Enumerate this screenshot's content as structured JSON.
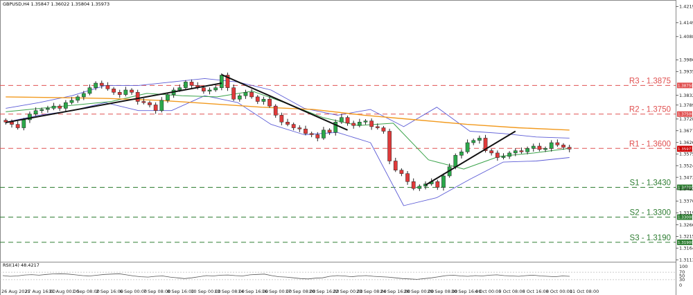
{
  "chart_data": {
    "type": "candlestick",
    "header": "GBPUSD,H4  1.35847 1.36022 1.35804 1.35973",
    "y_ticks": [
      "1.42195",
      "1.41490",
      "1.40885",
      "1.39865",
      "1.39355",
      "1.38320",
      "1.37895",
      "1.37285",
      "1.36775",
      "1.36260",
      "1.35755",
      "1.35245",
      "1.34735",
      "1.34225",
      "1.33700",
      "1.33190",
      "1.32665",
      "1.32155",
      "1.31645",
      "1.31135"
    ],
    "y_tick_values": [
      1.42195,
      1.4149,
      1.40885,
      1.39865,
      1.39355,
      1.3832,
      1.37895,
      1.37285,
      1.36775,
      1.3626,
      1.35755,
      1.35245,
      1.34735,
      1.34225,
      1.337,
      1.3319,
      1.32665,
      1.32155,
      1.31645,
      1.31135
    ],
    "ylim": [
      1.3105,
      1.4245
    ],
    "x_ticks": [
      "26 Aug 2021",
      "27 Aug 16:00",
      "31 Aug 00:00",
      "1 Sep 08:00",
      "2 Sep 16:00",
      "6 Sep 00:00",
      "7 Sep 08:00",
      "8 Sep 16:00",
      "10 Sep 00:00",
      "13 Sep 08:00",
      "14 Sep 16:00",
      "16 Sep 00:00",
      "17 Sep 08:00",
      "20 Sep 16:00",
      "22 Sep 00:00",
      "23 Sep 08:00",
      "24 Sep 16:00",
      "28 Sep 00:00",
      "29 Sep 08:00",
      "30 Sep 16:00",
      "4 Oct 00:00",
      "5 Oct 08:00",
      "6 Oct 16:00",
      "8 Oct 00:00",
      "11 Oct 08:00"
    ],
    "levels": [
      {
        "label": "R3 - 1.3875",
        "value": 1.3875,
        "tag": "1.38750",
        "color": "#e05050"
      },
      {
        "label": "R2 - 1.3750",
        "value": 1.375,
        "tag": "1.37500",
        "color": "#e05050"
      },
      {
        "label": "R1 - 1.3600",
        "value": 1.36,
        "tag": "1.36000",
        "color": "#e05050"
      },
      {
        "label": "S1 - 1.3430",
        "value": 1.343,
        "tag": "1.34300",
        "color": "#2e7d32"
      },
      {
        "label": "S2 - 1.3300",
        "value": 1.33,
        "tag": "1.33000",
        "color": "#2e7d32"
      },
      {
        "label": "S3 - 1.3190",
        "value": 1.319,
        "tag": "1.31900",
        "color": "#2e7d32"
      }
    ],
    "current_price": {
      "tag": "1.35973",
      "value": 1.35973,
      "color": "#cc0000"
    },
    "close_path": [
      1.3715,
      1.3705,
      1.369,
      1.3725,
      1.375,
      1.3765,
      1.377,
      1.3775,
      1.3785,
      1.3775,
      1.38,
      1.381,
      1.3825,
      1.384,
      1.3865,
      1.3885,
      1.3875,
      1.386,
      1.3845,
      1.3835,
      1.3855,
      1.3845,
      1.3805,
      1.38,
      1.379,
      1.3765,
      1.381,
      1.3835,
      1.3855,
      1.3865,
      1.389,
      1.3875,
      1.3865,
      1.385,
      1.3855,
      1.3865,
      1.392,
      1.3865,
      1.3815,
      1.383,
      1.3845,
      1.3825,
      1.3805,
      1.3815,
      1.3785,
      1.3745,
      1.3715,
      1.3705,
      1.369,
      1.3685,
      1.3665,
      1.366,
      1.3645,
      1.368,
      1.367,
      1.3715,
      1.3735,
      1.371,
      1.37,
      1.3715,
      1.372,
      1.3695,
      1.369,
      1.3675,
      1.3545,
      1.3505,
      1.349,
      1.3455,
      1.3425,
      1.3435,
      1.3445,
      1.3455,
      1.343,
      1.348,
      1.352,
      1.357,
      1.3585,
      1.3625,
      1.3635,
      1.3645,
      1.359,
      1.358,
      1.356,
      1.3565,
      1.358,
      1.359,
      1.3585,
      1.36,
      1.361,
      1.3595,
      1.36,
      1.3625,
      1.3615,
      1.3605,
      1.3597
    ],
    "ma_slow": {
      "color": "#f29a1e",
      "values": [
        1.3825,
        1.3822,
        1.3818,
        1.381,
        1.3795,
        1.378,
        1.377,
        1.3745,
        1.3725,
        1.3705,
        1.369,
        1.368
      ]
    },
    "ma_fast": {
      "color": "#3aa34a",
      "values": [
        1.376,
        1.3775,
        1.379,
        1.3805,
        1.384,
        1.383,
        1.3825,
        1.385,
        1.3795,
        1.3735,
        1.37,
        1.371,
        1.355,
        1.351,
        1.3565,
        1.358,
        1.36
      ]
    },
    "bb_upper": {
      "color": "#5b5bd6",
      "values": [
        1.3775,
        1.38,
        1.383,
        1.3875,
        1.3875,
        1.389,
        1.3905,
        1.389,
        1.3855,
        1.3775,
        1.3745,
        1.377,
        1.3695,
        1.378,
        1.3675,
        1.3665,
        1.365,
        1.3645
      ]
    },
    "bb_lower": {
      "color": "#5b5bd6",
      "values": [
        1.3715,
        1.3745,
        1.3765,
        1.38,
        1.3765,
        1.3765,
        1.383,
        1.38,
        1.3705,
        1.366,
        1.367,
        1.3625,
        1.335,
        1.3385,
        1.3465,
        1.354,
        1.3545,
        1.356
      ]
    },
    "trendlines": [
      {
        "from": [
          0,
          1.3713
        ],
        "to": [
          36,
          1.3885
        ]
      },
      {
        "from": [
          36,
          1.3922
        ],
        "to": [
          57,
          1.368
        ]
      },
      {
        "from": [
          70,
          1.344
        ],
        "to": [
          85,
          1.3675
        ]
      }
    ],
    "rsi": {
      "label": "RSI(14) 48.4217",
      "levels": [
        "100",
        "70",
        "50",
        "30",
        "0"
      ],
      "values": [
        52,
        48,
        50,
        55,
        57,
        54,
        58,
        61,
        62,
        60,
        56,
        52,
        50,
        54,
        58,
        60,
        62,
        56,
        50,
        46,
        44,
        48,
        50,
        44,
        40,
        36,
        40,
        46,
        52,
        50,
        54,
        55,
        52,
        50,
        56,
        58,
        60,
        52,
        46,
        44,
        40,
        36,
        34,
        38,
        40,
        48,
        52,
        50,
        46,
        50,
        52,
        48,
        46,
        44,
        40,
        36,
        34,
        32,
        36,
        40,
        46,
        52,
        54,
        50,
        48,
        52,
        50,
        54,
        56,
        52,
        50,
        48,
        52,
        54,
        50,
        48,
        46,
        50,
        48
      ]
    }
  }
}
